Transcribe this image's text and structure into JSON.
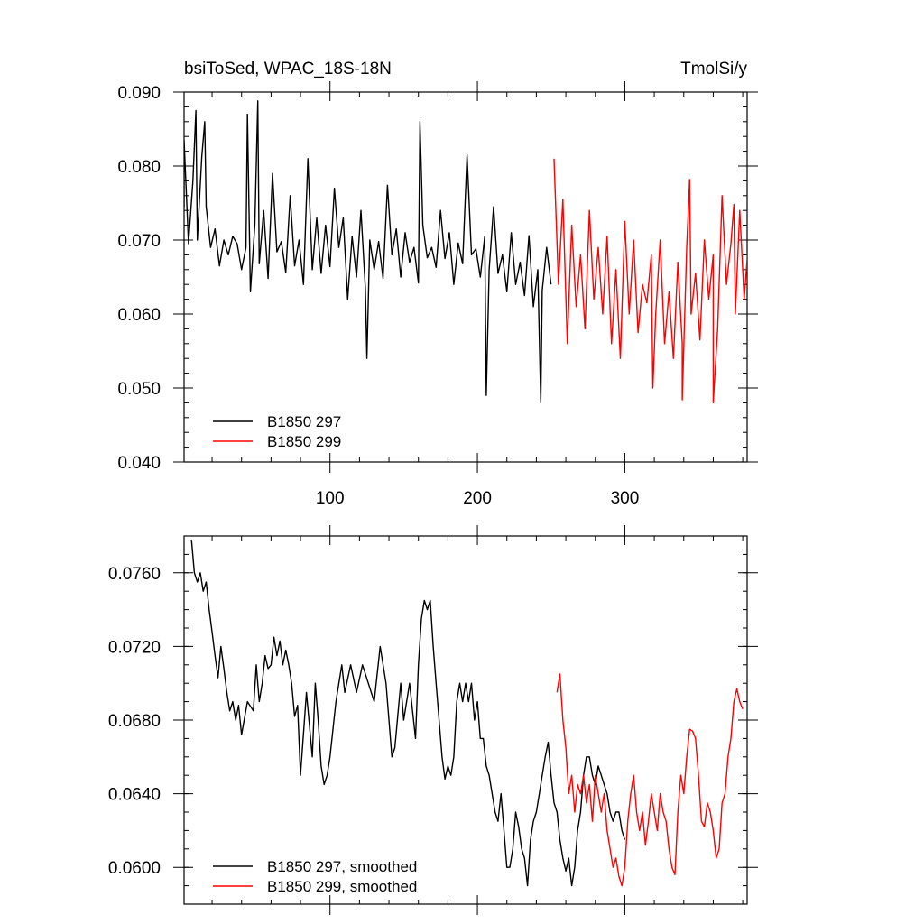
{
  "chart_data": [
    {
      "type": "line",
      "title": "bsiToSed, WPAC_18S-18N",
      "units": "TmolSi/y",
      "xlim": [
        1,
        383
      ],
      "ylim": [
        0.04,
        0.09
      ],
      "x_ticks": [
        100,
        200,
        300
      ],
      "x_tick_labels": [
        "100",
        "200",
        "300"
      ],
      "y_ticks": [
        0.04,
        0.05,
        0.06,
        0.07,
        0.08,
        0.09
      ],
      "y_tick_labels": [
        "0.040",
        "0.050",
        "0.060",
        "0.070",
        "0.080",
        "0.090"
      ],
      "legend_position": "bottom-left",
      "series": [
        {
          "name": "B1850 297",
          "color": "#000000",
          "x_start": 1,
          "x_step": 3,
          "values": [
            0.0745,
            0.0695,
            0.078,
            0.07,
            0.0812,
            0.0745,
            0.069,
            0.0715,
            0.0665,
            0.07,
            0.068,
            0.0705,
            0.0695,
            0.066,
            0.069,
            0.063,
            0.072,
            0.0668,
            0.074,
            0.0648,
            0.079,
            0.0684,
            0.0698,
            0.0656,
            0.076,
            0.0665,
            0.07,
            0.064,
            0.081,
            0.066,
            0.073,
            0.0655,
            0.072,
            0.0664,
            0.077,
            0.069,
            0.073,
            0.062,
            0.0705,
            0.065,
            0.074,
            0.0635,
            0.07,
            0.066,
            0.0698,
            0.0648,
            0.0774,
            0.068,
            0.0715,
            0.065,
            0.071,
            0.067,
            0.069,
            0.0642,
            0.072,
            0.0676,
            0.069,
            0.0663,
            0.074,
            0.0675,
            0.071,
            0.064,
            0.0696,
            0.0668,
            0.0815,
            0.068,
            0.0688,
            0.065,
            0.0705,
            0.066,
            0.0745,
            0.0655,
            0.068,
            0.063,
            0.071,
            0.064,
            0.067,
            0.0625,
            0.0706,
            0.061,
            0.066,
            0.0632,
            0.069,
            0.064
          ],
          "visible_peaks": [
            [
              1,
              0.0835
            ],
            [
              9,
              0.0875
            ],
            [
              15,
              0.086
            ],
            [
              44,
              0.087
            ],
            [
              51,
              0.0888
            ],
            [
              125,
              0.054
            ],
            [
              161,
              0.086
            ],
            [
              206,
              0.049
            ],
            [
              243,
              0.048
            ]
          ]
        },
        {
          "name": "B1850 299",
          "color": "#ff0000",
          "x_start": 252,
          "x_step": 3,
          "values": [
            0.081,
            0.064,
            0.0755,
            0.056,
            0.072,
            0.061,
            0.068,
            0.058,
            0.074,
            0.062,
            0.069,
            0.06,
            0.0705,
            0.056,
            0.066,
            0.054,
            0.0725,
            0.06,
            0.07,
            0.0575,
            0.064,
            0.0615,
            0.068,
            0.06,
            0.07,
            0.056,
            0.063,
            0.054,
            0.067,
            0.056,
            0.069,
            0.06,
            0.0655,
            0.0565,
            0.07,
            0.062,
            0.068,
            0.058,
            0.076,
            0.064,
            0.0695,
            0.06,
            0.074,
            0.062,
            0.07,
            0.061,
            0.072,
            0.065
          ],
          "visible_peaks": [
            [
              252,
              0.081
            ],
            [
              319,
              0.05
            ],
            [
              339,
              0.0484
            ],
            [
              344,
              0.0782
            ],
            [
              360,
              0.048
            ],
            [
              374,
              0.0748
            ]
          ]
        }
      ]
    },
    {
      "type": "line",
      "xlim": [
        1,
        383
      ],
      "ylim": [
        0.058,
        0.078
      ],
      "x_ticks": [
        100,
        200,
        300
      ],
      "y_ticks": [
        0.06,
        0.064,
        0.068,
        0.072,
        0.076
      ],
      "y_tick_labels": [
        "0.0600",
        "0.0640",
        "0.0680",
        "0.0720",
        "0.0760"
      ],
      "legend_position": "bottom-left",
      "series": [
        {
          "name": "B1850 297, smoothed",
          "color": "#000000",
          "x": [
            6,
            8,
            10,
            12,
            14,
            16,
            18,
            20,
            22,
            24,
            26,
            28,
            30,
            32,
            34,
            36,
            38,
            40,
            44,
            48,
            50,
            52,
            54,
            56,
            58,
            60,
            62,
            64,
            66,
            68,
            70,
            72,
            74,
            76,
            78,
            80,
            84,
            88,
            90,
            92,
            94,
            96,
            98,
            100,
            104,
            108,
            110,
            114,
            118,
            122,
            126,
            130,
            134,
            138,
            142,
            144,
            148,
            150,
            154,
            158,
            160,
            162,
            164,
            166,
            168,
            170,
            172,
            174,
            176,
            178,
            180,
            182,
            184,
            186,
            188,
            190,
            192,
            194,
            196,
            198,
            200,
            202,
            204,
            206,
            208,
            210,
            212,
            214,
            216,
            218,
            220,
            222,
            224,
            226,
            228,
            230,
            232,
            234,
            236,
            238,
            240,
            242,
            244,
            246,
            248,
            250,
            252,
            254,
            256,
            258,
            260,
            262,
            264,
            266,
            268,
            270,
            272,
            274,
            276,
            278,
            280,
            282,
            284,
            286,
            288,
            290,
            292,
            294,
            296,
            298,
            300
          ],
          "values": [
            0.0778,
            0.076,
            0.0755,
            0.076,
            0.075,
            0.0755,
            0.074,
            0.0728,
            0.0715,
            0.0703,
            0.072,
            0.0708,
            0.0695,
            0.0685,
            0.069,
            0.068,
            0.0688,
            0.0672,
            0.069,
            0.0685,
            0.071,
            0.069,
            0.07,
            0.0715,
            0.0708,
            0.071,
            0.0725,
            0.0715,
            0.0723,
            0.071,
            0.0718,
            0.071,
            0.07,
            0.0682,
            0.0688,
            0.065,
            0.0695,
            0.066,
            0.07,
            0.068,
            0.0655,
            0.0645,
            0.065,
            0.066,
            0.069,
            0.071,
            0.0695,
            0.071,
            0.0695,
            0.071,
            0.07,
            0.069,
            0.072,
            0.07,
            0.066,
            0.0665,
            0.07,
            0.068,
            0.07,
            0.067,
            0.071,
            0.0735,
            0.0745,
            0.074,
            0.0745,
            0.072,
            0.07,
            0.068,
            0.066,
            0.0648,
            0.0655,
            0.065,
            0.066,
            0.069,
            0.07,
            0.069,
            0.07,
            0.069,
            0.07,
            0.068,
            0.069,
            0.067,
            0.067,
            0.0655,
            0.065,
            0.064,
            0.063,
            0.0625,
            0.064,
            0.062,
            0.06,
            0.06,
            0.061,
            0.063,
            0.0622,
            0.061,
            0.0605,
            0.059,
            0.0615,
            0.0625,
            0.063,
            0.064,
            0.065,
            0.066,
            0.0668,
            0.065,
            0.0635,
            0.063,
            0.0615,
            0.0605,
            0.0598,
            0.0605,
            0.059,
            0.06,
            0.062,
            0.063,
            0.065,
            0.066,
            0.066,
            0.065,
            0.0645,
            0.0655,
            0.065,
            0.0645,
            0.064,
            0.063,
            0.0625,
            0.063,
            0.063,
            0.062,
            0.0615
          ]
        },
        {
          "name": "B1850 299, smoothed",
          "color": "#ff0000",
          "x": [
            254,
            256,
            258,
            260,
            262,
            264,
            266,
            268,
            270,
            272,
            274,
            276,
            278,
            280,
            282,
            284,
            286,
            288,
            290,
            292,
            294,
            296,
            298,
            300,
            302,
            304,
            306,
            308,
            310,
            312,
            314,
            316,
            318,
            320,
            322,
            324,
            326,
            328,
            330,
            332,
            334,
            336,
            338,
            340,
            342,
            344,
            346,
            348,
            350,
            352,
            354,
            356,
            358,
            360,
            362,
            364,
            366,
            368,
            370,
            372,
            374,
            376,
            378,
            380
          ],
          "values": [
            0.0695,
            0.0705,
            0.068,
            0.0665,
            0.064,
            0.065,
            0.063,
            0.0645,
            0.064,
            0.065,
            0.0635,
            0.0645,
            0.0625,
            0.065,
            0.064,
            0.063,
            0.064,
            0.062,
            0.061,
            0.06,
            0.0605,
            0.0595,
            0.059,
            0.06,
            0.0625,
            0.064,
            0.065,
            0.063,
            0.062,
            0.063,
            0.0612,
            0.0625,
            0.064,
            0.063,
            0.062,
            0.064,
            0.063,
            0.0625,
            0.061,
            0.06,
            0.0596,
            0.063,
            0.065,
            0.064,
            0.066,
            0.0675,
            0.0674,
            0.067,
            0.065,
            0.0625,
            0.0622,
            0.0635,
            0.063,
            0.062,
            0.0605,
            0.061,
            0.0635,
            0.064,
            0.066,
            0.067,
            0.069,
            0.0697,
            0.069,
            0.0686
          ]
        }
      ]
    }
  ]
}
